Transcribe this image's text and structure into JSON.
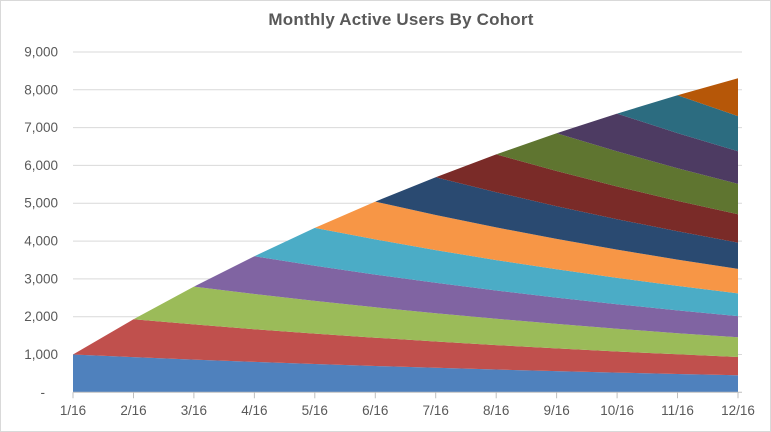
{
  "chart_title": "Monthly Active Users By Cohort",
  "style": {
    "background": "#FFFFFF",
    "border_color": "#D9D9D9",
    "grid_color": "#D9D9D9",
    "axis_color": "#BFBFBF",
    "text_color": "#595959",
    "title_color": "#595959"
  },
  "chart_data": {
    "type": "area",
    "stacked": true,
    "title": "Monthly Active Users By Cohort",
    "xlabel": "",
    "ylabel": "",
    "legend": "none",
    "grid": "horizontal",
    "ylim": [
      0,
      9000
    ],
    "categories": [
      "1/16",
      "2/16",
      "3/16",
      "4/16",
      "5/16",
      "6/16",
      "7/16",
      "8/16",
      "9/16",
      "10/16",
      "11/16",
      "12/16"
    ],
    "y_ticks": [
      {
        "label": "9,000",
        "value": 9000
      },
      {
        "label": "8,000",
        "value": 8000
      },
      {
        "label": "7,000",
        "value": 7000
      },
      {
        "label": "6,000",
        "value": 6000
      },
      {
        "label": "5,000",
        "value": 5000
      },
      {
        "label": "4,000",
        "value": 4000
      },
      {
        "label": "3,000",
        "value": 3000
      },
      {
        "label": "2,000",
        "value": 2000
      },
      {
        "label": "1,000",
        "value": 1000
      },
      {
        "label": "-",
        "value": 0
      }
    ],
    "series": [
      {
        "name": "1/16",
        "color": "#4F81BD",
        "values": [
          1000,
          930,
          865,
          804,
          748,
          696,
          647,
          602,
          560,
          520,
          484,
          450
        ]
      },
      {
        "name": "2/16",
        "color": "#C0504D",
        "values": [
          0,
          1000,
          930,
          865,
          804,
          748,
          696,
          647,
          602,
          560,
          520,
          484
        ]
      },
      {
        "name": "3/16",
        "color": "#9BBB59",
        "values": [
          0,
          0,
          1000,
          930,
          865,
          804,
          748,
          696,
          647,
          602,
          560,
          520
        ]
      },
      {
        "name": "4/16",
        "color": "#8064A2",
        "values": [
          0,
          0,
          0,
          1000,
          930,
          865,
          804,
          748,
          696,
          647,
          602,
          560
        ]
      },
      {
        "name": "5/16",
        "color": "#4BACC6",
        "values": [
          0,
          0,
          0,
          0,
          1000,
          930,
          865,
          804,
          748,
          696,
          647,
          602
        ]
      },
      {
        "name": "6/16",
        "color": "#F79646",
        "values": [
          0,
          0,
          0,
          0,
          0,
          1000,
          930,
          865,
          804,
          748,
          696,
          647
        ]
      },
      {
        "name": "7/16",
        "color": "#2A4A71",
        "values": [
          0,
          0,
          0,
          0,
          0,
          0,
          1000,
          930,
          865,
          804,
          748,
          696
        ]
      },
      {
        "name": "8/16",
        "color": "#7A2B28",
        "values": [
          0,
          0,
          0,
          0,
          0,
          0,
          0,
          1000,
          930,
          865,
          804,
          748
        ]
      },
      {
        "name": "9/16",
        "color": "#5F7530",
        "values": [
          0,
          0,
          0,
          0,
          0,
          0,
          0,
          0,
          1000,
          930,
          865,
          804
        ]
      },
      {
        "name": "10/16",
        "color": "#4D3B62",
        "values": [
          0,
          0,
          0,
          0,
          0,
          0,
          0,
          0,
          0,
          1000,
          930,
          865
        ]
      },
      {
        "name": "11/16",
        "color": "#2C6C80",
        "values": [
          0,
          0,
          0,
          0,
          0,
          0,
          0,
          0,
          0,
          0,
          1000,
          930
        ]
      },
      {
        "name": "12/16",
        "color": "#B65708",
        "values": [
          0,
          0,
          0,
          0,
          0,
          0,
          0,
          0,
          0,
          0,
          0,
          1000
        ]
      }
    ],
    "totals_by_month": [
      1000,
      1930,
      2795,
      3599,
      4347,
      5043,
      5690,
      6292,
      6852,
      7372,
      7856,
      8306
    ]
  }
}
